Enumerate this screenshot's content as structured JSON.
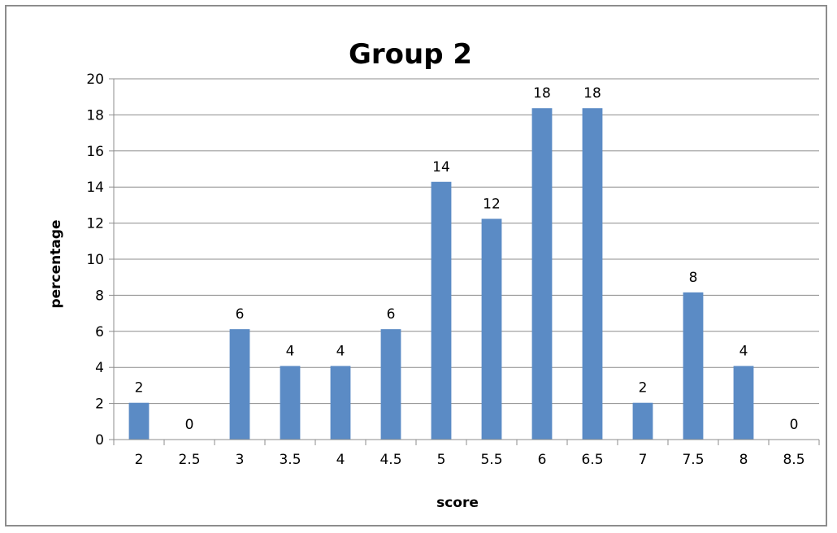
{
  "chart_data": {
    "type": "bar",
    "title": "Group 2",
    "xlabel": "score",
    "ylabel": "percentage",
    "categories": [
      "2",
      "2.5",
      "3",
      "3.5",
      "4",
      "4.5",
      "5",
      "5.5",
      "6",
      "6.5",
      "7",
      "7.5",
      "8",
      "8.5"
    ],
    "values": [
      2.04,
      0,
      6.12,
      4.08,
      4.08,
      6.12,
      14.29,
      12.24,
      18.37,
      18.37,
      2.04,
      8.16,
      4.08,
      0
    ],
    "data_labels": [
      "2",
      "0",
      "6",
      "4",
      "4",
      "6",
      "14",
      "12",
      "18",
      "18",
      "2",
      "8",
      "4",
      "0"
    ],
    "ylim": [
      0,
      20
    ],
    "yticks": [
      "0",
      "2",
      "4",
      "6",
      "8",
      "10",
      "12",
      "14",
      "16",
      "18",
      "20"
    ],
    "grid": true,
    "legend": "none",
    "bar_color": "#5B8BC5"
  }
}
